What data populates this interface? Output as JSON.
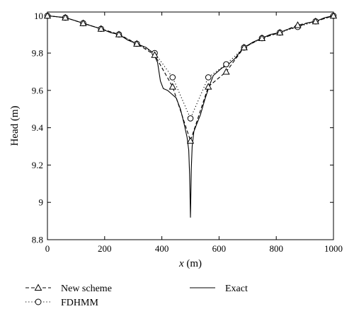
{
  "chart_data": {
    "type": "line",
    "xlabel_var": "x",
    "xlabel_unit": " (m)",
    "ylabel": "Head (m)",
    "xlim": [
      0,
      1000
    ],
    "ylim": [
      8.8,
      10.02
    ],
    "x_ticks": [
      0,
      200,
      400,
      600,
      800,
      1000
    ],
    "x_tick_labels": [
      "0",
      "200",
      "400",
      "600",
      "800",
      "1000"
    ],
    "y_ticks": [
      8.8,
      9,
      9.2,
      9.4,
      9.6,
      9.8,
      10
    ],
    "y_tick_labels": [
      "8.8",
      "9",
      "9.2",
      "9.4",
      "9.6",
      "9.8",
      "10"
    ],
    "grid": false,
    "legend_position": "bottom",
    "colors": {
      "line": "#000000",
      "background": "#ffffff"
    },
    "series": [
      {
        "name": "New scheme",
        "style": "dashed",
        "marker": "triangle",
        "x": [
          0,
          62.5,
          125,
          187.5,
          250,
          312.5,
          375,
          437.5,
          500,
          562.5,
          625,
          687.5,
          750,
          812.5,
          875,
          937.5,
          1000
        ],
        "y": [
          10.0,
          9.99,
          9.96,
          9.93,
          9.9,
          9.85,
          9.79,
          9.62,
          9.33,
          9.62,
          9.7,
          9.83,
          9.88,
          9.91,
          9.95,
          9.97,
          10.0
        ]
      },
      {
        "name": "FDHMM",
        "style": "dotted",
        "marker": "circle",
        "x": [
          0,
          62.5,
          125,
          187.5,
          250,
          312.5,
          375,
          437.5,
          500,
          562.5,
          625,
          687.5,
          750,
          812.5,
          875,
          937.5,
          1000
        ],
        "y": [
          10.0,
          9.99,
          9.96,
          9.93,
          9.9,
          9.85,
          9.8,
          9.67,
          9.45,
          9.67,
          9.74,
          9.83,
          9.88,
          9.91,
          9.94,
          9.97,
          10.0
        ]
      },
      {
        "name": "Exact",
        "style": "solid",
        "marker": "none",
        "x": [
          0,
          30,
          62.5,
          95,
          125,
          155,
          187.5,
          220,
          250,
          280,
          312.5,
          345,
          370,
          385,
          395,
          405,
          420,
          435,
          450,
          465,
          478,
          488,
          494,
          497,
          499,
          500,
          501,
          503,
          506,
          512,
          522,
          535,
          550,
          565,
          580,
          595,
          610,
          625,
          640,
          655,
          670,
          687.5,
          720,
          750,
          780,
          812.5,
          845,
          875,
          905,
          937.5,
          970,
          1000
        ],
        "y": [
          10.0,
          9.995,
          9.99,
          9.975,
          9.96,
          9.945,
          9.93,
          9.91,
          9.9,
          9.87,
          9.85,
          9.83,
          9.8,
          9.75,
          9.65,
          9.61,
          9.6,
          9.58,
          9.56,
          9.5,
          9.42,
          9.35,
          9.28,
          9.15,
          9.0,
          8.92,
          9.0,
          9.18,
          9.3,
          9.38,
          9.42,
          9.47,
          9.55,
          9.62,
          9.68,
          9.7,
          9.72,
          9.73,
          9.75,
          9.77,
          9.8,
          9.83,
          9.86,
          9.88,
          9.9,
          9.91,
          9.93,
          9.94,
          9.96,
          9.97,
          9.99,
          10.0
        ]
      }
    ]
  }
}
